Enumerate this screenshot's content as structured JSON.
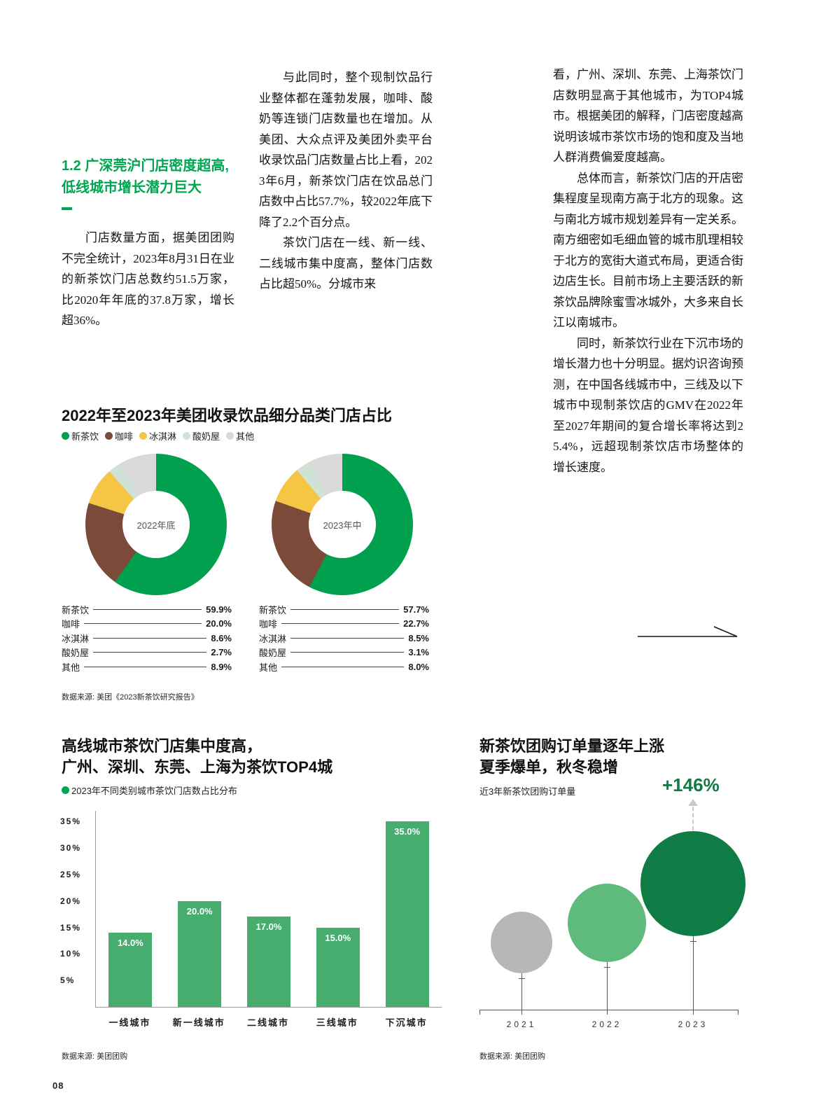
{
  "page_number": "08",
  "accent": {
    "green": "#00a551",
    "dark_green": "#117a45"
  },
  "columns": {
    "left": {
      "heading": "1.2 广深莞沪门店密度超高,低线城市增长潜力巨大",
      "paragraph": "门店数量方面，据美团团购不完全统计，2023年8月31日在业的新茶饮门店总数约51.5万家，比2020年年底的37.8万家，增长超36%。"
    },
    "middle": {
      "para1": "与此同时，整个现制饮品行业整体都在蓬勃发展，咖啡、酸奶等连锁门店数量也在增加。从美团、大众点评及美团外卖平台收录饮品门店数量占比上看，2023年6月，新茶饮门店在饮品总门店数中占比57.7%，较2022年底下降了2.2个百分点。",
      "para2": "茶饮门店在一线、新一线、二线城市集中度高，整体门店数占比超50%。分城市来"
    },
    "right": {
      "para1": "看，广州、深圳、东莞、上海茶饮门店数明显高于其他城市，为TOP4城市。根据美团的解释，门店密度越高说明该城市茶饮市场的饱和度及当地人群消费偏爱度越高。",
      "para2": "总体而言，新茶饮门店的开店密集程度呈现南方高于北方的现象。这与南北方城市规划差异有一定关系。南方细密如毛细血管的城市肌理相较于北方的宽街大道式布局，更适合街边店生长。目前市场上主要活跃的新茶饮品牌除蜜雪冰城外，大多来自长江以南城市。",
      "para3": "同时，新茶饮行业在下沉市场的增长潜力也十分明显。据灼识咨询预测，在中国各线城市中，三线及以下城市中现制茶饮店的GMV在2022年至2027年期间的复合增长率将达到25.4%，远超现制茶饮店市场整体的增长速度。"
    }
  },
  "chart_data": [
    {
      "type": "pie",
      "variant": "donut",
      "title": "2022年至2023年美团收录饮品细分品类门店占比",
      "legend": [
        {
          "label": "新茶饮",
          "color": "#00a04e"
        },
        {
          "label": "咖啡",
          "color": "#7b4a38"
        },
        {
          "label": "冰淇淋",
          "color": "#f6c544"
        },
        {
          "label": "酸奶屋",
          "color": "#cfe3d4"
        },
        {
          "label": "其他",
          "color": "#d9d9d9"
        }
      ],
      "donuts": [
        {
          "center_label": "2022年底",
          "values": [
            59.9,
            20.0,
            8.6,
            2.7,
            8.9
          ]
        },
        {
          "center_label": "2023年中",
          "values": [
            57.7,
            22.7,
            8.5,
            3.1,
            8.0
          ]
        }
      ],
      "source": "数据来源: 美团《2023新茶饮研究报告》"
    },
    {
      "type": "bar",
      "title_line1": "高线城市茶饮门店集中度高，",
      "title_line2": "广州、深圳、东莞、上海为茶饮TOP4城",
      "legend": "2023年不同类别城市茶饮门店数占比分布",
      "categories": [
        "一线城市",
        "新一线城市",
        "二线城市",
        "三线城市",
        "下沉城市"
      ],
      "values": [
        14.0,
        20.0,
        17.0,
        15.0,
        35.0
      ],
      "bar_color": "#46ad6e",
      "yticks": [
        "35%",
        "30%",
        "25%",
        "20%",
        "15%",
        "10%",
        "5%"
      ],
      "ylim": [
        0,
        37
      ],
      "source": "数据来源: 美团团购"
    },
    {
      "type": "scatter",
      "variant": "bubble",
      "title_line1": "新茶饮团购订单量逐年上涨",
      "title_line2": "夏季爆单，秋冬稳增",
      "subtitle": "近3年新茶饮团购订单量",
      "annotation": "+146%",
      "points": [
        {
          "x": "2021",
          "diameter": 88,
          "color": "#b7b7b7"
        },
        {
          "x": "2022",
          "diameter": 112,
          "color": "#5eba7d"
        },
        {
          "x": "2023",
          "diameter": 150,
          "color": "#107c45"
        }
      ],
      "source": "数据来源: 美团团购"
    }
  ]
}
